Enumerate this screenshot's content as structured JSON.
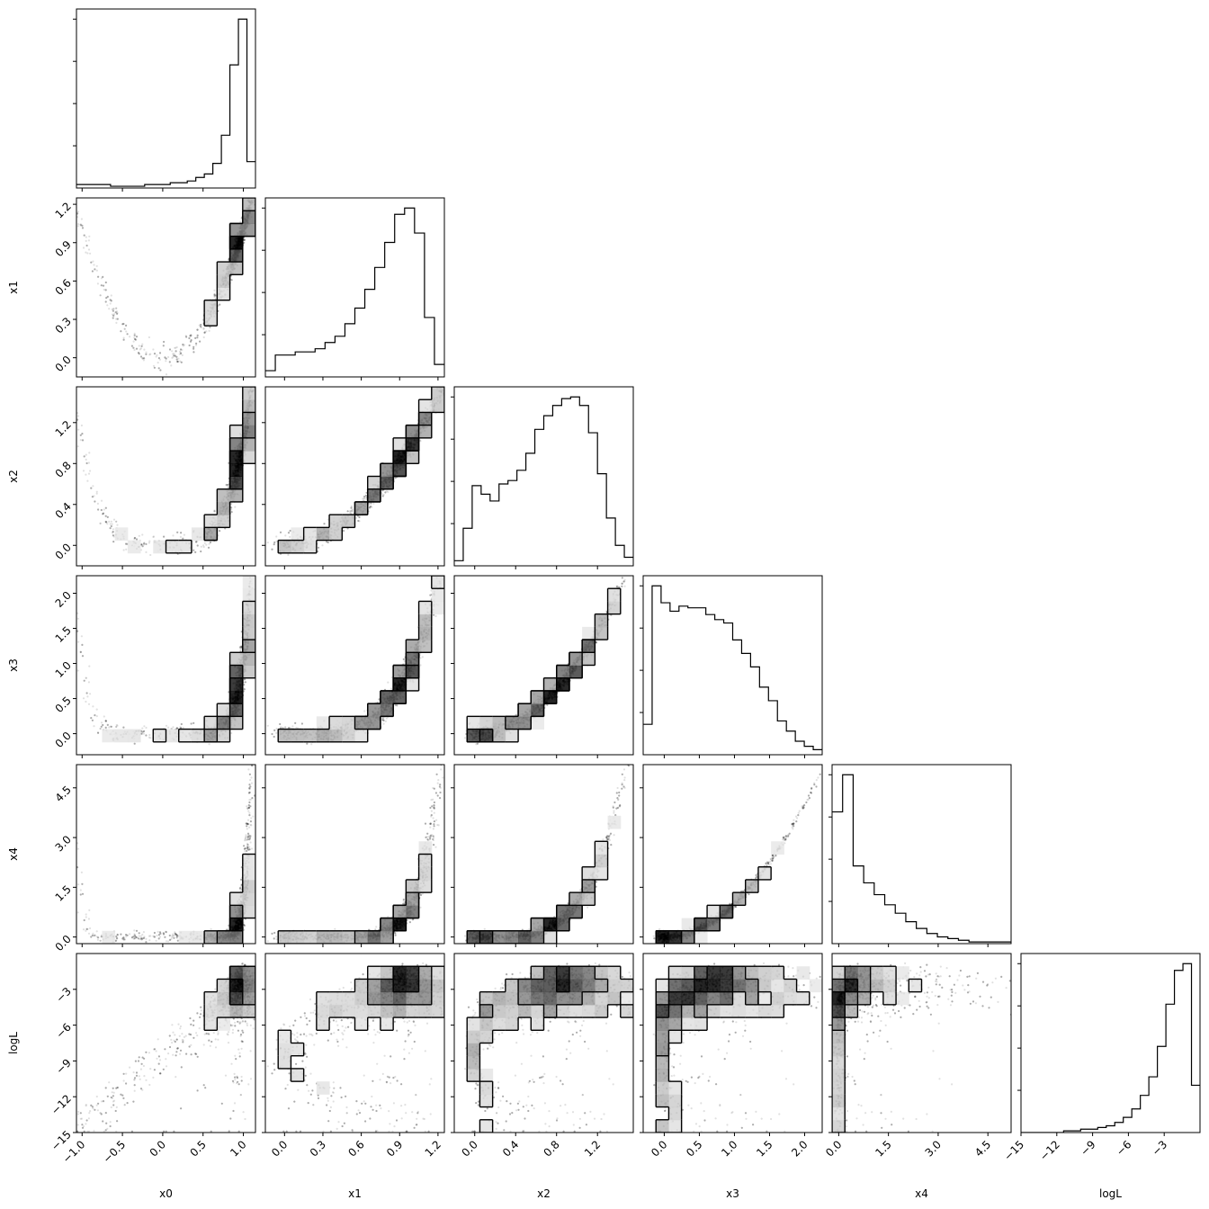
{
  "chart_data": {
    "type": "corner",
    "parameters": [
      "x0",
      "x1",
      "x2",
      "x3",
      "x4",
      "logL"
    ],
    "axis_labels": [
      "x0",
      "x1",
      "x2",
      "x3",
      "x4",
      "logL"
    ],
    "ranges": [
      [
        -1.07,
        1.15
      ],
      [
        -0.15,
        1.25
      ],
      [
        -0.2,
        1.55
      ],
      [
        -0.3,
        2.25
      ],
      [
        -0.2,
        5.2
      ],
      [
        -15,
        0
      ]
    ],
    "ticks": {
      "x0": [
        -1.0,
        -0.5,
        0.0,
        0.5,
        1.0
      ],
      "x1": [
        0.0,
        0.3,
        0.6,
        0.9,
        1.2
      ],
      "x2": [
        0.0,
        0.4,
        0.8,
        1.2
      ],
      "x3": [
        0.0,
        0.5,
        1.0,
        1.5,
        2.0
      ],
      "x4": [
        0.0,
        1.5,
        3.0,
        4.5
      ],
      "logL": [
        -15,
        -12,
        -9,
        -6,
        -3
      ]
    },
    "tick_labels": {
      "x0": [
        "−1.0",
        "−0.5",
        "0.0",
        "0.5",
        "1.0"
      ],
      "x1": [
        "0.0",
        "0.3",
        "0.6",
        "0.9",
        "1.2"
      ],
      "x2": [
        "0.0",
        "0.4",
        "0.8",
        "1.2"
      ],
      "x3": [
        "0.0",
        "0.5",
        "1.0",
        "1.5",
        "2.0"
      ],
      "x4": [
        "0.0",
        "1.5",
        "3.0",
        "4.5"
      ],
      "logL": [
        "−15",
        "−12",
        "−9",
        "−6",
        "−3"
      ]
    },
    "histograms": [
      {
        "param": "x0",
        "counts": [
          2,
          2,
          2,
          2,
          1,
          1,
          1,
          1,
          2,
          2,
          2,
          3,
          3,
          4,
          6,
          8,
          14,
          30,
          70,
          96,
          15
        ]
      },
      {
        "param": "x1",
        "counts": [
          2,
          7,
          7,
          8,
          8,
          9,
          11,
          13,
          17,
          22,
          28,
          35,
          43,
          52,
          54,
          46,
          19,
          4
        ]
      },
      {
        "param": "x2",
        "counts": [
          3,
          22,
          47,
          42,
          38,
          48,
          50,
          56,
          66,
          80,
          88,
          94,
          98,
          99,
          94,
          78,
          54,
          28,
          12,
          5
        ]
      },
      {
        "param": "x3",
        "counts": [
          18,
          100,
          90,
          85,
          88,
          87,
          87,
          83,
          80,
          78,
          68,
          60,
          52,
          40,
          32,
          20,
          14,
          8,
          5,
          3
        ]
      },
      {
        "param": "x4",
        "counts": [
          78,
          100,
          46,
          36,
          29,
          23,
          18,
          13,
          9,
          6,
          4,
          3,
          2,
          1,
          1,
          1,
          1
        ]
      },
      {
        "param": "logL",
        "counts": [
          0,
          0,
          0,
          0,
          0,
          1,
          1,
          2,
          2,
          3,
          4,
          6,
          9,
          14,
          22,
          33,
          51,
          76,
          96,
          100,
          28
        ]
      }
    ]
  }
}
